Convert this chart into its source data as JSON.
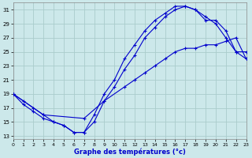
{
  "xlabel": "Graphe des températures (°c)",
  "bg_color": "#cce8ea",
  "grid_color": "#aacccc",
  "line_color": "#0000cc",
  "line1_x": [
    0,
    1,
    2,
    3,
    4,
    5,
    6,
    7,
    8,
    9,
    10,
    11,
    12,
    13,
    14,
    15,
    16,
    17,
    18,
    19,
    20,
    21,
    22,
    23
  ],
  "line1_y": [
    19,
    18,
    17,
    16,
    15,
    14.5,
    13.5,
    13.5,
    16,
    19,
    21,
    24,
    26,
    28,
    29.5,
    30.5,
    31.5,
    31.5,
    31,
    30,
    29,
    27,
    25,
    24
  ],
  "line2_x": [
    0,
    1,
    2,
    3,
    4,
    5,
    6,
    7,
    8,
    9,
    10,
    11,
    12,
    13,
    14,
    15,
    16,
    17,
    18,
    19,
    20,
    21,
    22,
    23
  ],
  "line2_y": [
    19,
    17.5,
    16.5,
    15.5,
    15,
    14.5,
    13.5,
    13.5,
    15,
    18,
    20,
    22.5,
    24.5,
    27,
    28.5,
    30,
    31,
    31.5,
    31,
    29.5,
    29.5,
    28,
    25,
    25
  ],
  "line3_x": [
    0,
    3,
    7,
    9,
    11,
    12,
    13,
    14,
    15,
    16,
    17,
    18,
    19,
    20,
    21,
    22,
    23
  ],
  "line3_y": [
    19,
    16,
    15.5,
    18,
    20,
    21,
    22,
    23,
    24,
    25,
    25.5,
    25.5,
    26,
    26,
    26.5,
    27,
    24
  ],
  "xlim": [
    0,
    23
  ],
  "ylim": [
    12.5,
    32
  ],
  "yticks": [
    13,
    15,
    17,
    19,
    21,
    23,
    25,
    27,
    29,
    31
  ],
  "xticks": [
    0,
    1,
    2,
    3,
    4,
    5,
    6,
    7,
    8,
    9,
    10,
    11,
    12,
    13,
    14,
    15,
    16,
    17,
    18,
    19,
    20,
    21,
    22,
    23
  ]
}
